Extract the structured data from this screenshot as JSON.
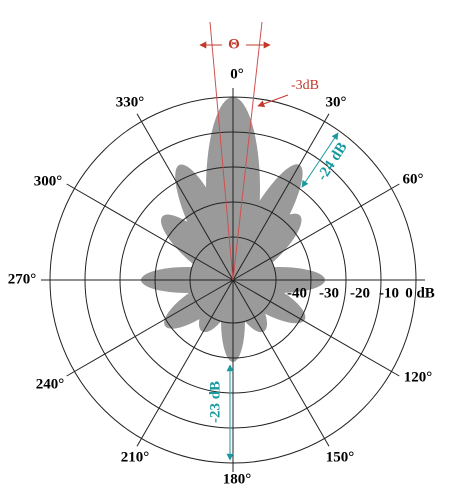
{
  "angle_labels": [
    "0°",
    "30°",
    "60°",
    "120°",
    "150°",
    "180°",
    "210°",
    "240°",
    "270°",
    "300°",
    "330°"
  ],
  "db_labels": [
    "-40",
    "-30",
    "-20",
    "-10",
    "0 dB"
  ],
  "annotations": {
    "theta": "Θ",
    "half_power": "-3dB",
    "side_lobe_top": "-24 dB",
    "back_lobe": "-23 dB"
  }
}
